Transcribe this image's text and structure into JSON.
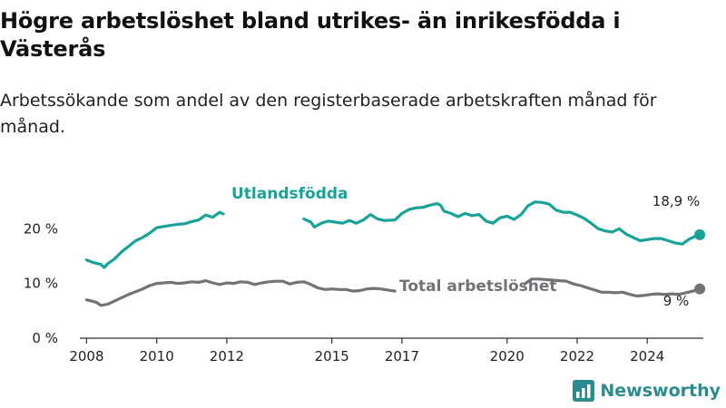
{
  "header": {
    "title": "Högre arbetslöshet bland utrikes- än inrikesfödda i Västerås",
    "subtitle": "Arbetssökande som andel av den registerbaserade arbetskraften månad för månad."
  },
  "brand": {
    "name": "Newsworthy",
    "icon": "newsworthy-logo-icon",
    "color": "#2a8c8f"
  },
  "chart_data": {
    "type": "line",
    "ylim": [
      0,
      27
    ],
    "xlim": [
      2007.6,
      2025.6
    ],
    "grid": false,
    "y_ticks": [
      {
        "value": 0,
        "label": "0 %"
      },
      {
        "value": 10,
        "label": "10 %"
      },
      {
        "value": 20,
        "label": "20 %"
      }
    ],
    "x_ticks": [
      {
        "value": 2008,
        "label": "2008"
      },
      {
        "value": 2010,
        "label": "2010"
      },
      {
        "value": 2012,
        "label": "2012"
      },
      {
        "value": 2015,
        "label": "2015"
      },
      {
        "value": 2017,
        "label": "2017"
      },
      {
        "value": 2020,
        "label": "2020"
      },
      {
        "value": 2022,
        "label": "2022"
      },
      {
        "value": 2024,
        "label": "2024"
      }
    ],
    "series": [
      {
        "name": "Utlandsfödda",
        "color": "#17a398",
        "end_label": "18,9 %",
        "segments": [
          [
            [
              2008.0,
              14.3
            ],
            [
              2008.2,
              13.8
            ],
            [
              2008.4,
              13.5
            ],
            [
              2008.5,
              12.9
            ],
            [
              2008.6,
              13.6
            ],
            [
              2008.8,
              14.5
            ],
            [
              2009.0,
              15.8
            ],
            [
              2009.2,
              16.8
            ],
            [
              2009.4,
              17.8
            ],
            [
              2009.6,
              18.4
            ],
            [
              2009.8,
              19.2
            ],
            [
              2010.0,
              20.2
            ],
            [
              2010.2,
              20.4
            ],
            [
              2010.4,
              20.6
            ],
            [
              2010.6,
              20.8
            ],
            [
              2010.8,
              20.9
            ],
            [
              2011.0,
              21.3
            ],
            [
              2011.2,
              21.6
            ],
            [
              2011.4,
              22.5
            ],
            [
              2011.6,
              22.1
            ],
            [
              2011.8,
              23.0
            ],
            [
              2011.9,
              22.7
            ]
          ],
          [
            [
              2014.2,
              21.8
            ],
            [
              2014.4,
              21.2
            ],
            [
              2014.5,
              20.3
            ],
            [
              2014.7,
              21.0
            ],
            [
              2014.9,
              21.4
            ],
            [
              2015.1,
              21.2
            ],
            [
              2015.3,
              21.0
            ],
            [
              2015.5,
              21.5
            ],
            [
              2015.7,
              21.0
            ],
            [
              2015.9,
              21.6
            ],
            [
              2016.1,
              22.6
            ],
            [
              2016.3,
              21.8
            ],
            [
              2016.5,
              21.5
            ],
            [
              2016.8,
              21.6
            ],
            [
              2017.0,
              22.8
            ],
            [
              2017.2,
              23.5
            ],
            [
              2017.4,
              23.8
            ],
            [
              2017.6,
              23.9
            ],
            [
              2017.8,
              24.3
            ],
            [
              2018.0,
              24.6
            ],
            [
              2018.1,
              24.3
            ],
            [
              2018.2,
              23.2
            ],
            [
              2018.4,
              22.8
            ],
            [
              2018.6,
              22.2
            ],
            [
              2018.8,
              22.8
            ],
            [
              2019.0,
              22.4
            ],
            [
              2019.2,
              22.6
            ],
            [
              2019.4,
              21.4
            ],
            [
              2019.6,
              21.0
            ],
            [
              2019.8,
              22.0
            ],
            [
              2020.0,
              22.3
            ],
            [
              2020.2,
              21.7
            ],
            [
              2020.4,
              22.6
            ],
            [
              2020.6,
              24.2
            ],
            [
              2020.8,
              24.9
            ],
            [
              2021.0,
              24.8
            ],
            [
              2021.2,
              24.5
            ],
            [
              2021.4,
              23.4
            ],
            [
              2021.6,
              23.0
            ],
            [
              2021.8,
              23.0
            ],
            [
              2022.0,
              22.5
            ],
            [
              2022.2,
              21.9
            ],
            [
              2022.4,
              21.0
            ],
            [
              2022.6,
              20.0
            ],
            [
              2022.8,
              19.6
            ],
            [
              2023.0,
              19.4
            ],
            [
              2023.2,
              20.0
            ],
            [
              2023.4,
              19.0
            ],
            [
              2023.6,
              18.4
            ],
            [
              2023.8,
              17.8
            ],
            [
              2024.0,
              18.0
            ],
            [
              2024.2,
              18.2
            ],
            [
              2024.4,
              18.2
            ],
            [
              2024.6,
              17.8
            ],
            [
              2024.8,
              17.4
            ],
            [
              2025.0,
              17.2
            ],
            [
              2025.2,
              18.1
            ],
            [
              2025.4,
              18.7
            ],
            [
              2025.5,
              18.9
            ]
          ]
        ]
      },
      {
        "name": "Total arbetslöshet",
        "color": "#737377",
        "end_label": "9 %",
        "segments": [
          [
            [
              2008.0,
              7.0
            ],
            [
              2008.2,
              6.7
            ],
            [
              2008.3,
              6.5
            ],
            [
              2008.4,
              6.0
            ],
            [
              2008.6,
              6.2
            ],
            [
              2008.8,
              6.8
            ],
            [
              2009.0,
              7.4
            ],
            [
              2009.2,
              8.0
            ],
            [
              2009.4,
              8.5
            ],
            [
              2009.6,
              9.0
            ],
            [
              2009.8,
              9.6
            ],
            [
              2010.0,
              10.0
            ],
            [
              2010.2,
              10.1
            ],
            [
              2010.4,
              10.2
            ],
            [
              2010.6,
              10.0
            ],
            [
              2010.8,
              10.1
            ],
            [
              2011.0,
              10.3
            ],
            [
              2011.2,
              10.2
            ],
            [
              2011.4,
              10.5
            ],
            [
              2011.6,
              10.1
            ],
            [
              2011.8,
              9.8
            ],
            [
              2012.0,
              10.1
            ],
            [
              2012.2,
              10.0
            ],
            [
              2012.4,
              10.3
            ],
            [
              2012.6,
              10.2
            ],
            [
              2012.8,
              9.8
            ],
            [
              2013.0,
              10.1
            ],
            [
              2013.2,
              10.3
            ],
            [
              2013.4,
              10.4
            ],
            [
              2013.6,
              10.4
            ],
            [
              2013.8,
              9.9
            ],
            [
              2014.0,
              10.2
            ],
            [
              2014.2,
              10.3
            ],
            [
              2014.4,
              9.8
            ],
            [
              2014.6,
              9.2
            ],
            [
              2014.8,
              8.9
            ],
            [
              2015.0,
              9.0
            ],
            [
              2015.2,
              8.9
            ],
            [
              2015.4,
              8.9
            ],
            [
              2015.6,
              8.6
            ],
            [
              2015.8,
              8.7
            ],
            [
              2016.0,
              9.0
            ],
            [
              2016.2,
              9.1
            ],
            [
              2016.4,
              9.0
            ],
            [
              2016.6,
              8.8
            ],
            [
              2016.8,
              8.6
            ]
          ],
          [
            [
              2020.5,
              9.9
            ],
            [
              2020.7,
              10.8
            ],
            [
              2020.9,
              10.8
            ],
            [
              2021.1,
              10.7
            ],
            [
              2021.3,
              10.6
            ],
            [
              2021.5,
              10.5
            ],
            [
              2021.7,
              10.4
            ],
            [
              2021.9,
              9.9
            ],
            [
              2022.1,
              9.6
            ],
            [
              2022.3,
              9.2
            ],
            [
              2022.5,
              8.8
            ],
            [
              2022.7,
              8.4
            ],
            [
              2022.9,
              8.4
            ],
            [
              2023.1,
              8.3
            ],
            [
              2023.3,
              8.4
            ],
            [
              2023.5,
              8.0
            ],
            [
              2023.7,
              7.7
            ],
            [
              2023.9,
              7.8
            ],
            [
              2024.1,
              8.0
            ],
            [
              2024.3,
              8.1
            ],
            [
              2024.5,
              8.0
            ],
            [
              2024.7,
              8.1
            ],
            [
              2024.9,
              8.0
            ],
            [
              2025.1,
              8.3
            ],
            [
              2025.3,
              8.6
            ],
            [
              2025.5,
              9.0
            ]
          ]
        ]
      }
    ]
  }
}
